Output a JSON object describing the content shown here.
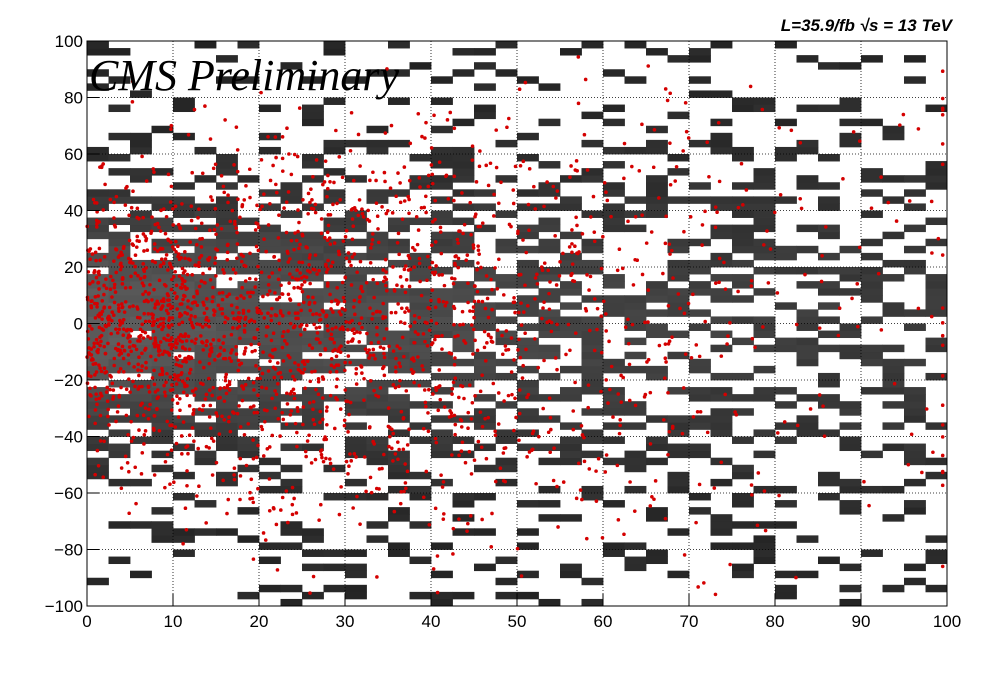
{
  "chart_data": {
    "type": "heatmap",
    "title": "",
    "xlabel": "",
    "ylabel": "",
    "xlim": [
      0,
      100
    ],
    "ylim": [
      -100,
      100
    ],
    "grid": true,
    "x_ticks": [
      "0",
      "10",
      "20",
      "30",
      "40",
      "50",
      "60",
      "70",
      "80",
      "90",
      "100"
    ],
    "y_ticks": [
      "−100",
      "−80",
      "−60",
      "−40",
      "−20",
      "0",
      "20",
      "40",
      "60",
      "80",
      "100"
    ],
    "bins": {
      "x": [
        0,
        100,
        40
      ],
      "y": [
        -100,
        100,
        80
      ]
    },
    "heatmap_description": "grayscale 2D histogram, dense near y=0 and low x, sparse toward |y|→100 and x→100",
    "overlay": {
      "type": "scatter",
      "color": "#d40000",
      "description": "event points concentrated near y=0 for small x, spreading outward"
    },
    "colors": {
      "points": "#d40000",
      "background": "#ffffff",
      "axis": "#000000"
    },
    "annotations": {
      "experiment_label": "CMS Preliminary",
      "lumi_label": "L=35.9/fb  √s = 13 TeV"
    }
  }
}
